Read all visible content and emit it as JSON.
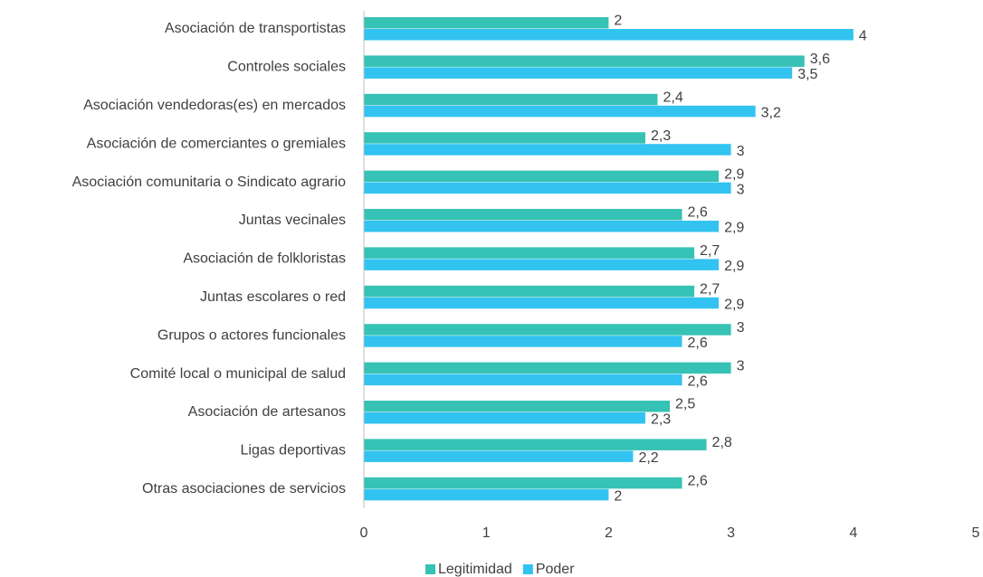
{
  "chart_data": {
    "type": "barh",
    "categories": [
      "Asociación de transportistas",
      "Controles sociales",
      "Asociación vendedoras(es) en mercados",
      "Asociación de comerciantes o gremiales",
      "Asociación comunitaria o Sindicato agrario",
      "Juntas vecinales",
      "Asociación de folkloristas",
      "Juntas escolares o red",
      "Grupos o actores funcionales",
      "Comité local o municipal de salud",
      "Asociación de artesanos",
      "Ligas deportivas",
      "Otras asociaciones de servicios"
    ],
    "series": [
      {
        "name": "Legitimidad",
        "color": "#36c2b4",
        "values": [
          2,
          3.6,
          2.4,
          2.3,
          2.9,
          2.6,
          2.7,
          2.7,
          3,
          3,
          2.5,
          2.8,
          2.6
        ],
        "value_labels": [
          "2",
          "3,6",
          "2,4",
          "2,3",
          "2,9",
          "2,6",
          "2,7",
          "2,7",
          "3",
          "3",
          "2,5",
          "2,8",
          "2,6"
        ]
      },
      {
        "name": "Poder",
        "color": "#33c3f0",
        "values": [
          4,
          3.5,
          3.2,
          3,
          3,
          2.9,
          2.9,
          2.9,
          2.6,
          2.6,
          2.3,
          2.2,
          2
        ],
        "value_labels": [
          "4",
          "3,5",
          "3,2",
          "3",
          "3",
          "2,9",
          "2,9",
          "2,9",
          "2,6",
          "2,6",
          "2,3",
          "2,2",
          "2"
        ]
      }
    ],
    "xlim": [
      0,
      5
    ],
    "xticks": [
      0,
      1,
      2,
      3,
      4,
      5
    ],
    "grid": false,
    "legend": "bottom"
  }
}
